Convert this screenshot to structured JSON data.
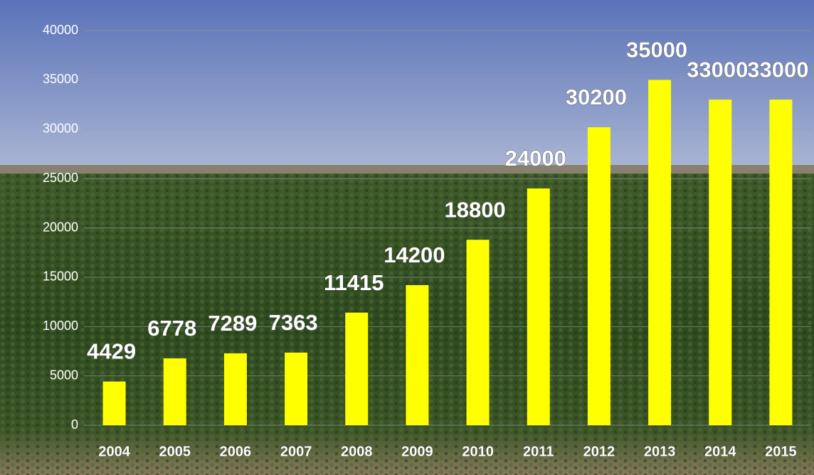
{
  "chart_data": {
    "type": "bar",
    "categories": [
      "2004",
      "2005",
      "2006",
      "2007",
      "2008",
      "2009",
      "2010",
      "2011",
      "2012",
      "2013",
      "2014",
      "2015"
    ],
    "values": [
      4429,
      6778,
      7289,
      7363,
      11415,
      14200,
      18800,
      24000,
      30200,
      35000,
      33000,
      33000
    ],
    "color": "#ffff00",
    "ylim": [
      0,
      40000
    ],
    "yticks": [
      0,
      5000,
      10000,
      15000,
      20000,
      25000,
      30000,
      35000,
      40000
    ],
    "grid": true
  }
}
